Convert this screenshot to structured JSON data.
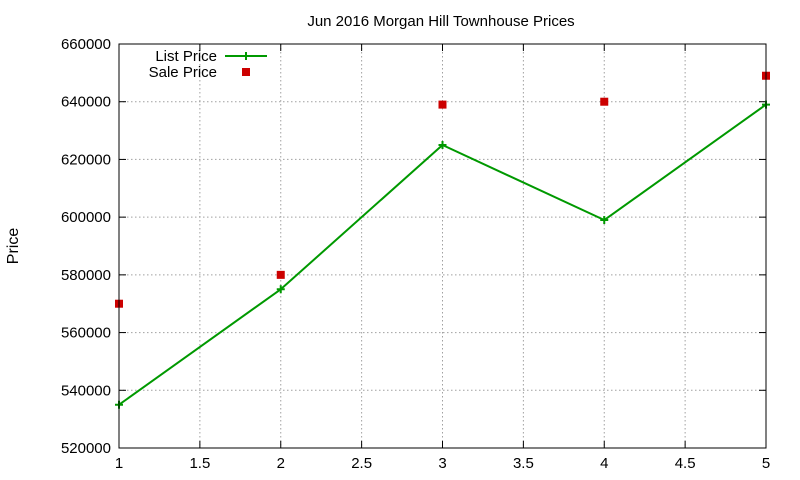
{
  "chart_data": {
    "type": "line",
    "title": "Jun 2016 Morgan Hill Townhouse Prices",
    "xlabel": "",
    "ylabel": "Price",
    "xlim": [
      1,
      5
    ],
    "ylim": [
      520000,
      660000
    ],
    "x_ticks": [
      1,
      1.5,
      2,
      2.5,
      3,
      3.5,
      4,
      4.5,
      5
    ],
    "y_ticks": [
      520000,
      540000,
      560000,
      580000,
      600000,
      620000,
      640000,
      660000
    ],
    "grid": true,
    "legend_position": "top-left",
    "series": [
      {
        "name": "List Price",
        "style": "line-with-plus-markers",
        "color": "#009900",
        "x": [
          1,
          2,
          3,
          4,
          5
        ],
        "y": [
          535000,
          575000,
          625000,
          599000,
          639000
        ]
      },
      {
        "name": "Sale Price",
        "style": "square-markers",
        "color": "#cc0000",
        "x": [
          1,
          2,
          3,
          4,
          5
        ],
        "y": [
          570000,
          580000,
          639000,
          640000,
          649000
        ]
      }
    ]
  }
}
